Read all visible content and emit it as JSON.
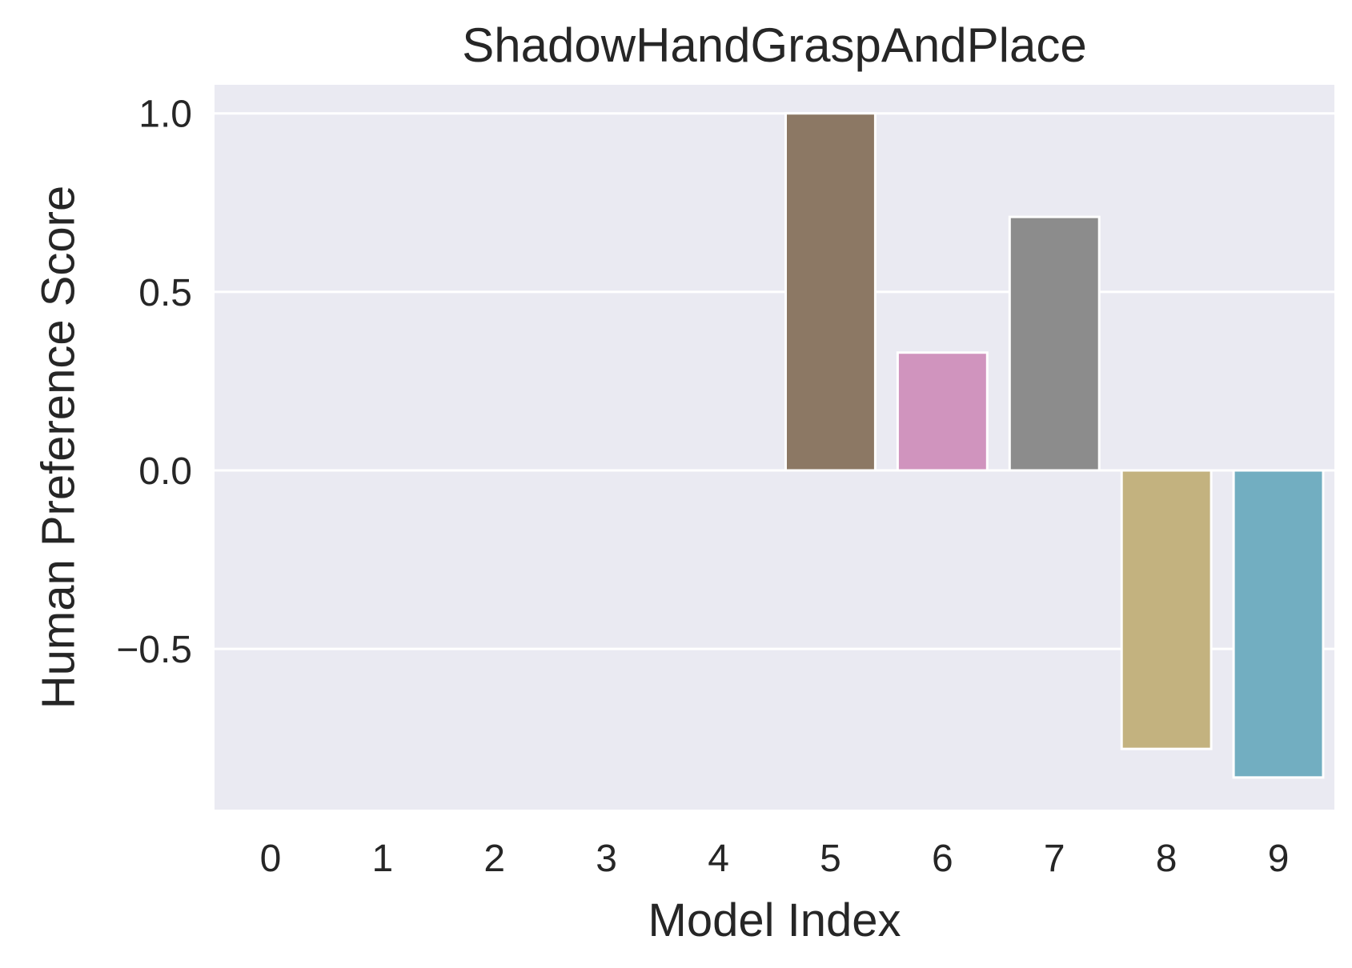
{
  "chart_data": {
    "type": "bar",
    "title": "ShadowHandGraspAndPlace",
    "xlabel": "Model Index",
    "ylabel": "Human Preference Score",
    "categories": [
      "0",
      "1",
      "2",
      "3",
      "4",
      "5",
      "6",
      "7",
      "8",
      "9"
    ],
    "values": [
      0,
      0,
      0,
      0,
      0,
      1.0,
      0.33,
      0.71,
      -0.78,
      -0.86
    ],
    "colors": [
      "#4c72b0",
      "#dd8452",
      "#55a868",
      "#c44e52",
      "#8172b3",
      "#8c7864",
      "#d094be",
      "#8c8c8c",
      "#c3b27f",
      "#72aec1"
    ],
    "ylim": [
      -0.95,
      1.08
    ],
    "yticks": [
      -0.5,
      0.0,
      0.5,
      1.0
    ],
    "ytick_labels": [
      "−0.5",
      "0.0",
      "0.5",
      "1.0"
    ],
    "grid": true,
    "background": "#eaeaf2"
  }
}
